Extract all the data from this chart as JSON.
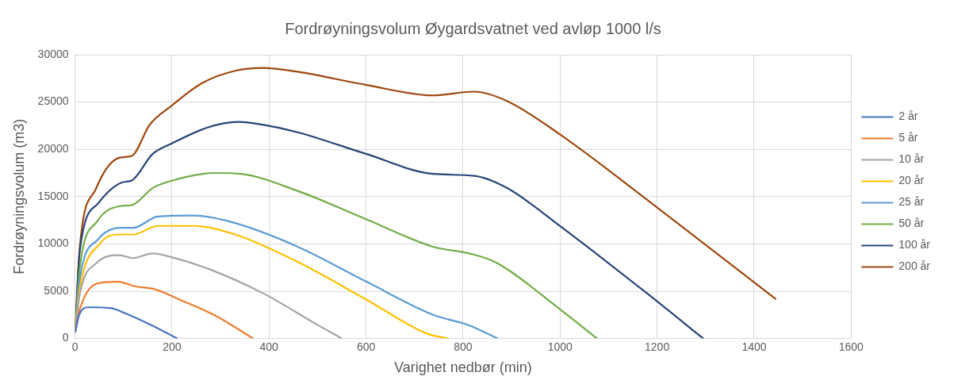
{
  "chart_data": {
    "type": "line",
    "title": "Fordrøyningsvolum Øygardsvatnet ved avløp 1000 l/s",
    "xlabel": "Varighet nedbør (min)",
    "ylabel": "Fordrøyningsvolum (m3)",
    "xlim": [
      0,
      1600
    ],
    "xticks": [
      0,
      200,
      400,
      600,
      800,
      1000,
      1200,
      1400,
      1600
    ],
    "ylim": [
      0,
      30000
    ],
    "yticks": [
      0,
      5000,
      10000,
      15000,
      20000,
      25000,
      30000
    ],
    "grid": true,
    "legend": "right",
    "marker": "none",
    "line_style": "solid",
    "series": [
      {
        "name": "2 år",
        "color": "#4472c4",
        "x": [
          1,
          8,
          28,
          74,
          102,
          154,
          211
        ],
        "values": [
          700,
          2400,
          3300,
          3200,
          2700,
          1500,
          0
        ]
      },
      {
        "name": "5 år",
        "color": "#ed7d31",
        "x": [
          1,
          10,
          45,
          88,
          125,
          165,
          216,
          290,
          367
        ],
        "values": [
          800,
          3100,
          5800,
          6000,
          5500,
          5200,
          4100,
          2400,
          0
        ]
      },
      {
        "name": "10 år",
        "color": "#a5a5a5",
        "x": [
          1,
          10,
          45,
          91,
          120,
          160,
          199,
          273,
          387,
          501,
          550
        ],
        "values": [
          900,
          4700,
          8000,
          8800,
          8500,
          9000,
          8600,
          7400,
          4800,
          1400,
          0
        ]
      },
      {
        "name": "20 år",
        "color": "#ffc000",
        "x": [
          1,
          10,
          51,
          94,
          120,
          171,
          245,
          330,
          459,
          601,
          726,
          769
        ],
        "values": [
          1000,
          5300,
          10000,
          11000,
          11000,
          11900,
          11900,
          11000,
          8100,
          4100,
          500,
          0
        ]
      },
      {
        "name": "25 år",
        "color": "#5b9bd5",
        "x": [
          1,
          10,
          48,
          94,
          120,
          171,
          245,
          330,
          459,
          601,
          738,
          812,
          871
        ],
        "values": [
          1000,
          6300,
          10500,
          11700,
          11700,
          12900,
          13000,
          12200,
          9700,
          6000,
          2500,
          1400,
          0
        ]
      },
      {
        "name": "50 år",
        "color": "#70ad47",
        "x": [
          1,
          10,
          46,
          94,
          117,
          160,
          194,
          290,
          342,
          459,
          601,
          738,
          812,
          869,
          1002,
          1076
        ],
        "values": [
          1100,
          7500,
          12400,
          14000,
          14100,
          15900,
          16600,
          17500,
          17400,
          15600,
          12600,
          9700,
          9000,
          8000,
          3000,
          0
        ]
      },
      {
        "name": "100 år",
        "color": "#264478",
        "x": [
          1,
          10,
          48,
          97,
          117,
          160,
          199,
          273,
          336,
          387,
          459,
          601,
          738,
          823,
          891,
          1002,
          1176,
          1295
        ],
        "values": [
          1200,
          9300,
          14300,
          16500,
          16700,
          19500,
          20600,
          22300,
          22900,
          22600,
          21800,
          19500,
          17400,
          17200,
          15900,
          11800,
          4900,
          0
        ]
      },
      {
        "name": "200 år",
        "color": "#9e480e",
        "x": [
          1,
          10,
          43,
          91,
          117,
          154,
          199,
          262,
          330,
          387,
          459,
          601,
          738,
          823,
          891,
          1002,
          1176,
          1444
        ],
        "values": [
          1300,
          9700,
          15800,
          19100,
          19300,
          22600,
          24600,
          27000,
          28300,
          28600,
          28200,
          26800,
          25700,
          26100,
          25100,
          21500,
          14800,
          4200
        ]
      }
    ]
  }
}
